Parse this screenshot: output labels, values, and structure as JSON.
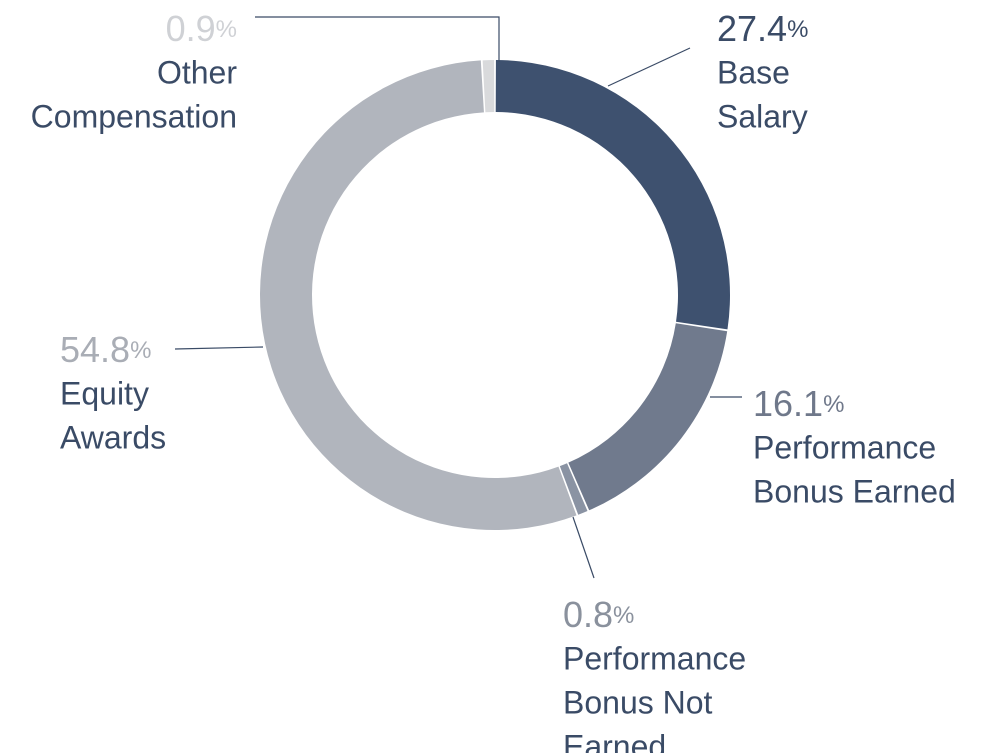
{
  "chart_data": {
    "type": "pie",
    "donut": true,
    "percent_suffix": "%",
    "slices": [
      {
        "value_label": "27.4",
        "value": 27.4,
        "label_lines": [
          "Base",
          "Salary"
        ],
        "color": "#3e516f",
        "value_color": "#3a4b66"
      },
      {
        "value_label": "16.1",
        "value": 16.1,
        "label_lines": [
          "Performance",
          "Bonus Earned"
        ],
        "color": "#707a8d",
        "value_color": "#6f788a"
      },
      {
        "value_label": "0.8",
        "value": 0.8,
        "label_lines": [
          "Performance",
          "Bonus Not",
          "Earned"
        ],
        "color": "#8a93a3",
        "value_color": "#8a919d"
      },
      {
        "value_label": "54.8",
        "value": 54.8,
        "label_lines": [
          "Equity",
          "Awards"
        ],
        "color": "#b1b5bd",
        "value_color": "#a9adb5"
      },
      {
        "value_label": "0.9",
        "value": 0.9,
        "label_lines": [
          "Other",
          "Compensation"
        ],
        "color": "#d9dadc",
        "value_color": "#cfd1d5"
      }
    ]
  }
}
